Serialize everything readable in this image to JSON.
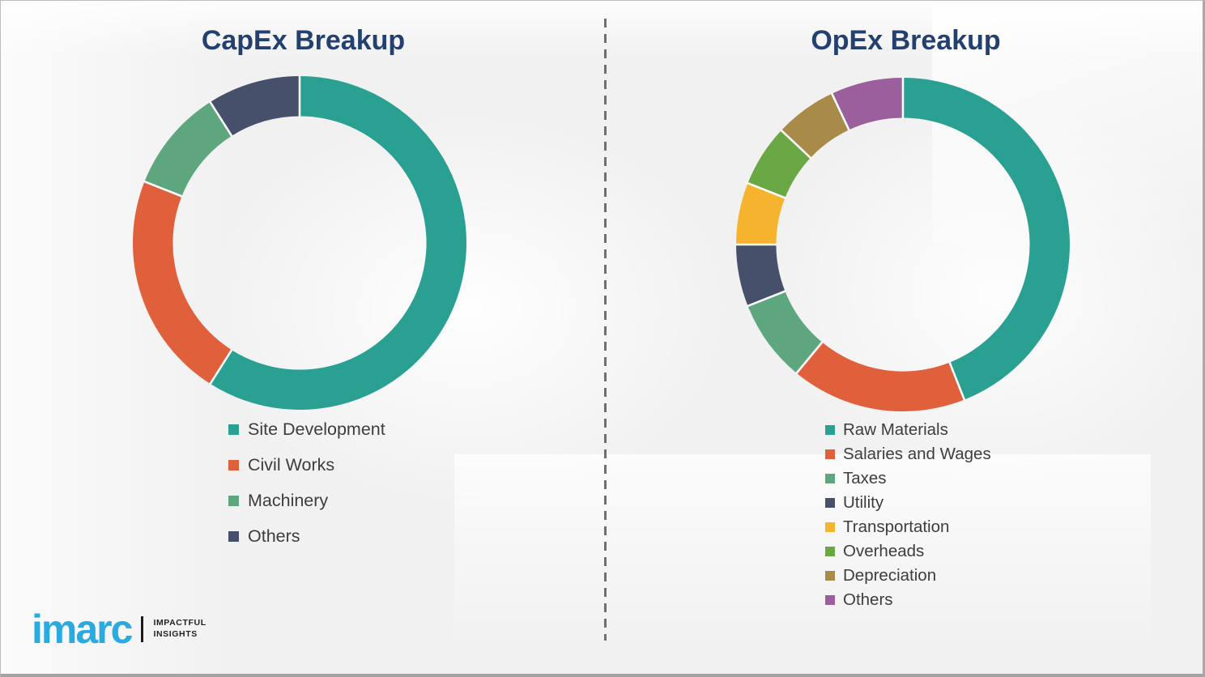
{
  "logo": {
    "brand": "imarc",
    "tagline_line1": "IMPACTFUL",
    "tagline_line2": "INSIGHTS",
    "brand_color": "#29abe2"
  },
  "divider_style": "vertical-dashed-gray",
  "title_color": "#24406e",
  "chart_data": [
    {
      "type": "pie",
      "variant": "donut",
      "title": "CapEx Breakup",
      "categories": [
        "Site Development",
        "Civil Works",
        "Machinery",
        "Others"
      ],
      "values": [
        59,
        22,
        10,
        9
      ],
      "values_unit": "percent",
      "values_are_estimates_from_arc_angles": true,
      "colors": [
        "#2aa093",
        "#e0603c",
        "#5ea67e",
        "#47506b"
      ],
      "start_angle_deg": 0,
      "direction": "clockwise",
      "inner_radius_ratio": 0.76,
      "data_labels": false,
      "legend_position": "below-chart-left"
    },
    {
      "type": "pie",
      "variant": "donut",
      "title": "OpEx Breakup",
      "categories": [
        "Raw Materials",
        "Salaries and Wages",
        "Taxes",
        "Utility",
        "Transportation",
        "Overheads",
        "Depreciation",
        "Others"
      ],
      "values": [
        44,
        17,
        8,
        6,
        6,
        6,
        6,
        7
      ],
      "values_unit": "percent",
      "values_are_estimates_from_arc_angles": true,
      "colors": [
        "#2aa093",
        "#e0603c",
        "#5ea67e",
        "#47506b",
        "#f6b42e",
        "#69a844",
        "#a98b49",
        "#9c5f9e"
      ],
      "start_angle_deg": 0,
      "direction": "clockwise",
      "inner_radius_ratio": 0.76,
      "data_labels": false,
      "legend_position": "below-chart-left"
    }
  ]
}
